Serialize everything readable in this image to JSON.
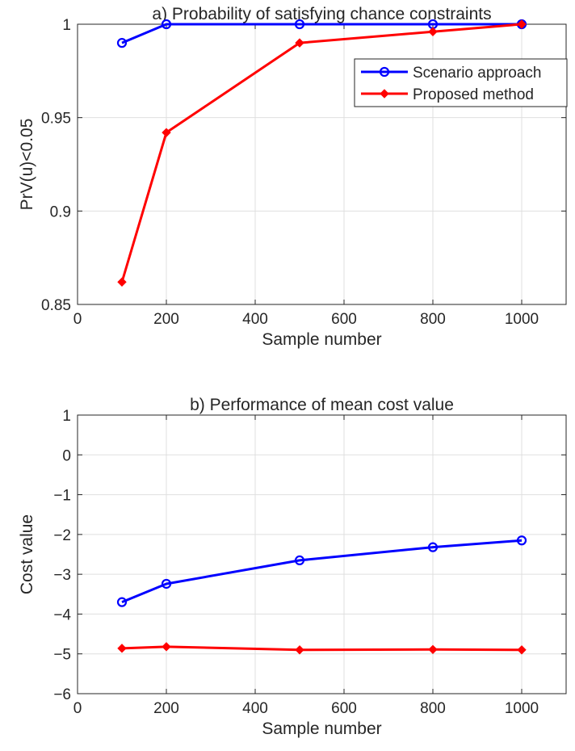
{
  "chart_data": [
    {
      "type": "line",
      "title": "a) Probability of satisfying chance constraints",
      "xlabel": "Sample number",
      "ylabel": "PrV(u)<0.05",
      "xlim": [
        0,
        1100
      ],
      "ylim": [
        0.85,
        1
      ],
      "x_ticks": [
        0,
        200,
        400,
        600,
        800,
        1000
      ],
      "x_tick_labels": [
        "0",
        "200",
        "400",
        "600",
        "800",
        "1000"
      ],
      "y_ticks": [
        0.85,
        0.9,
        0.95,
        1
      ],
      "y_tick_labels": [
        "0.85",
        "0.9",
        "0.95",
        "1"
      ],
      "grid": true,
      "legend_position": "top-right",
      "x": [
        100,
        200,
        500,
        800,
        1000
      ],
      "series": [
        {
          "name": "Scenario approach",
          "color": "#0000ff",
          "marker": "circle",
          "values": [
            0.99,
            1.0,
            1.0,
            1.0,
            1.0
          ]
        },
        {
          "name": "Proposed method",
          "color": "#ff0000",
          "marker": "diamond",
          "values": [
            0.862,
            0.942,
            0.99,
            0.996,
            1.0
          ]
        }
      ]
    },
    {
      "type": "line",
      "title": "b) Performance of mean cost value",
      "xlabel": "Sample number",
      "ylabel": "Cost value",
      "xlim": [
        0,
        1100
      ],
      "ylim": [
        -6,
        1
      ],
      "x_ticks": [
        0,
        200,
        400,
        600,
        800,
        1000
      ],
      "x_tick_labels": [
        "0",
        "200",
        "400",
        "600",
        "800",
        "1000"
      ],
      "y_ticks": [
        -6,
        -5,
        -4,
        -3,
        -2,
        -1,
        0,
        1
      ],
      "y_tick_labels": [
        "−6",
        "−5",
        "−4",
        "−3",
        "−2",
        "−1",
        "0",
        "1"
      ],
      "grid": true,
      "x": [
        100,
        200,
        500,
        800,
        1000
      ],
      "series": [
        {
          "color": "#0000ff",
          "marker": "circle",
          "values": [
            -3.7,
            -3.24,
            -2.65,
            -2.32,
            -2.15
          ]
        },
        {
          "color": "#ff0000",
          "marker": "diamond",
          "values": [
            -4.86,
            -4.82,
            -4.9,
            -4.89,
            -4.9
          ]
        }
      ]
    }
  ]
}
